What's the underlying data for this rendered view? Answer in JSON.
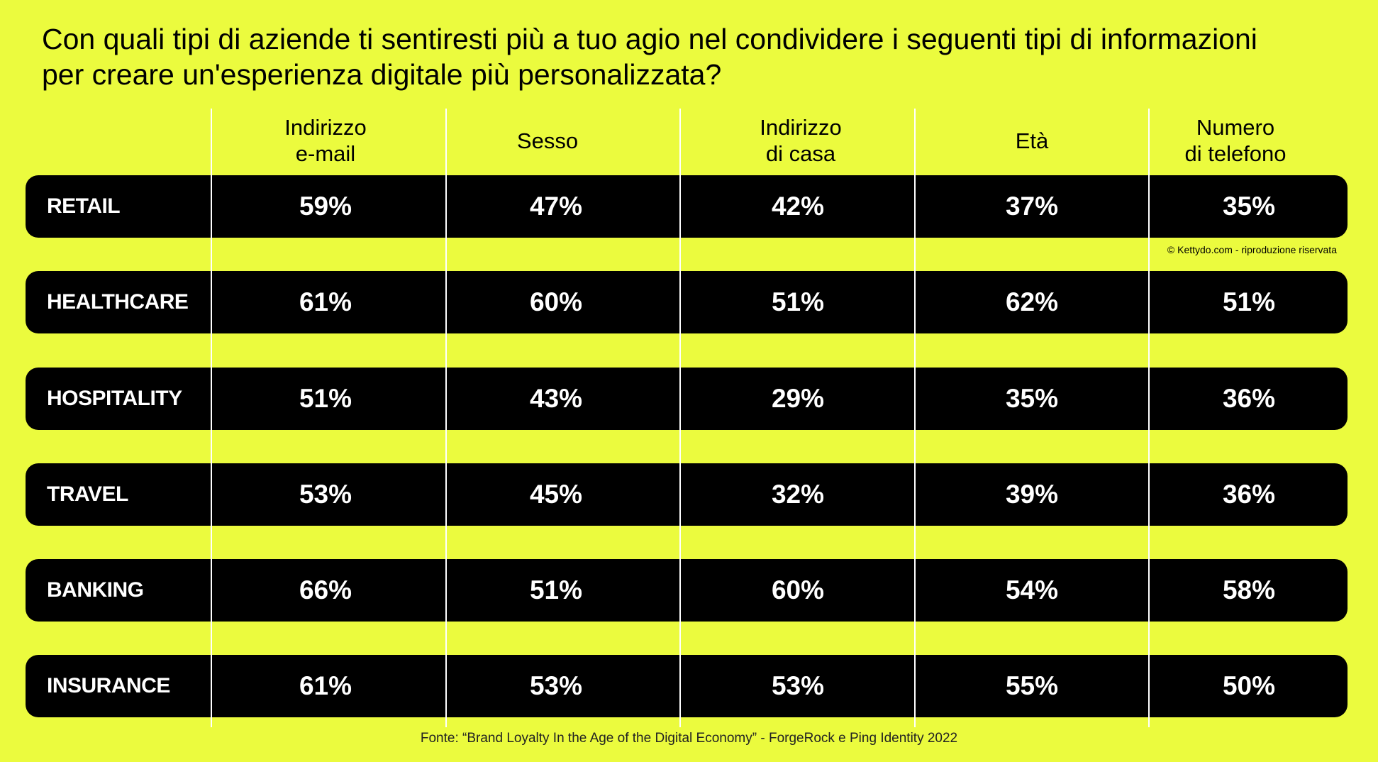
{
  "title": {
    "line1": "Con quali tipi di aziende ti sentiresti più a tuo agio nel condividere i seguenti tipi di informazioni",
    "line2": "per creare un'esperienza digitale più personalizzata?"
  },
  "colors": {
    "background": "#EBFB3E",
    "row_fill": "#000000",
    "row_text": "#FFFFFF",
    "divider": "#FFFFFF"
  },
  "copyright": "© Kettydo.com - riproduzione riservata",
  "source": "Fonte: “Brand Loyalty In the Age of the Digital Economy” - ForgeRock e Ping Identity 2022",
  "chart_data": {
    "type": "table",
    "columns": [
      [
        "Indirizzo",
        "e-mail"
      ],
      [
        "Sesso"
      ],
      [
        "Indirizzo",
        "di casa"
      ],
      [
        "Età"
      ],
      [
        "Numero",
        "di telefono"
      ]
    ],
    "rows": [
      {
        "label": "RETAIL",
        "values": [
          "59%",
          "47%",
          "42%",
          "37%",
          "35%"
        ]
      },
      {
        "label": "HEALTHCARE",
        "values": [
          "61%",
          "60%",
          "51%",
          "62%",
          "51%"
        ]
      },
      {
        "label": "HOSPITALITY",
        "values": [
          "51%",
          "43%",
          "29%",
          "35%",
          "36%"
        ]
      },
      {
        "label": "TRAVEL",
        "values": [
          "53%",
          "45%",
          "32%",
          "39%",
          "36%"
        ]
      },
      {
        "label": "BANKING",
        "values": [
          "66%",
          "51%",
          "60%",
          "54%",
          "58%"
        ]
      },
      {
        "label": "INSURANCE",
        "values": [
          "61%",
          "53%",
          "53%",
          "55%",
          "50%"
        ]
      }
    ]
  }
}
